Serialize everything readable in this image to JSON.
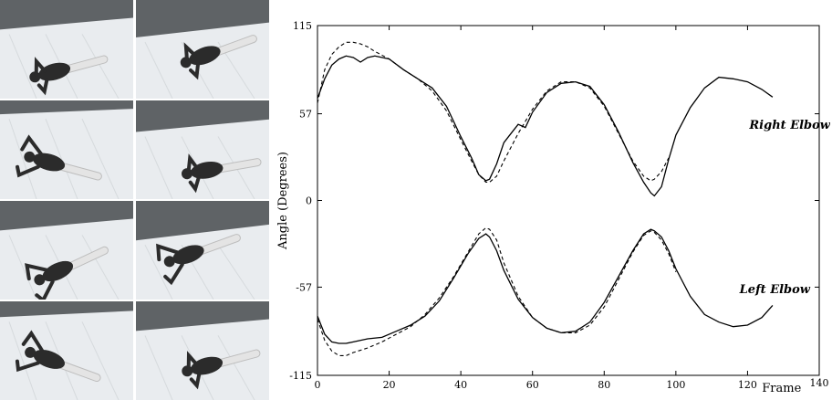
{
  "photos": {
    "count": 8,
    "background_floor": "#e9ecef",
    "background_wall": "#5f6366",
    "figure_color": "#2b2b2b"
  },
  "chart_data": {
    "type": "line",
    "xlabel": "Frame",
    "ylabel": "Angle (Degrees)",
    "xlim": [
      0,
      140
    ],
    "ylim": [
      -115,
      115
    ],
    "x_ticks": [
      0,
      20,
      40,
      60,
      80,
      100,
      120,
      140
    ],
    "y_ticks": [
      -115,
      -57,
      0,
      57,
      115
    ],
    "grid": false,
    "annotations": [
      "Right Elbow",
      "Left Elbow"
    ],
    "series": [
      {
        "group": "Right Elbow",
        "style": "solid",
        "x": [
          0,
          2,
          4,
          6,
          8,
          10,
          12,
          14,
          16,
          20,
          24,
          28,
          32,
          36,
          40,
          43,
          45,
          47,
          48,
          50,
          52,
          54,
          56,
          58,
          60,
          64,
          68,
          72,
          76,
          80,
          84,
          88,
          91,
          93,
          94,
          96,
          98,
          100,
          104,
          108,
          112,
          116,
          120,
          124,
          127
        ],
        "y": [
          67,
          80,
          89,
          93,
          95,
          94,
          91,
          94,
          95,
          93,
          86,
          80,
          74,
          62,
          42,
          28,
          17,
          13,
          14,
          24,
          38,
          44,
          50,
          48,
          58,
          71,
          77,
          78,
          75,
          63,
          45,
          25,
          12,
          5,
          3,
          9,
          27,
          43,
          61,
          74,
          81,
          80,
          78,
          73,
          68
        ]
      },
      {
        "group": "Right Elbow",
        "style": "dashed",
        "x": [
          0,
          2,
          4,
          6,
          8,
          10,
          12,
          14,
          16,
          20,
          24,
          28,
          32,
          36,
          40,
          43,
          45,
          47,
          48,
          50,
          52,
          56,
          60,
          64,
          68,
          72,
          76,
          80,
          84,
          88,
          91,
          93,
          94,
          96,
          98
        ],
        "y": [
          64,
          86,
          96,
          101,
          104,
          104,
          103,
          101,
          98,
          93,
          86,
          80,
          72,
          59,
          40,
          26,
          17,
          12,
          12,
          16,
          26,
          44,
          60,
          72,
          78,
          78,
          74,
          62,
          44,
          26,
          16,
          13,
          14,
          19,
          28
        ]
      },
      {
        "group": "Left Elbow",
        "style": "solid",
        "x": [
          0,
          2,
          4,
          6,
          8,
          10,
          14,
          18,
          22,
          26,
          30,
          34,
          38,
          42,
          45,
          47,
          48,
          50,
          52,
          56,
          60,
          64,
          68,
          72,
          76,
          80,
          84,
          88,
          91,
          93,
          94,
          96,
          98,
          100,
          104,
          108,
          112,
          116,
          120,
          124,
          127
        ],
        "y": [
          -76,
          -88,
          -93,
          -94,
          -94,
          -93,
          -91,
          -90,
          -86,
          -82,
          -76,
          -66,
          -51,
          -35,
          -25,
          -22,
          -24,
          -33,
          -46,
          -65,
          -77,
          -84,
          -87,
          -86,
          -80,
          -67,
          -50,
          -33,
          -22,
          -19,
          -20,
          -24,
          -33,
          -45,
          -63,
          -75,
          -80,
          -83,
          -82,
          -77,
          -69
        ]
      },
      {
        "group": "Left Elbow",
        "style": "dashed",
        "x": [
          0,
          2,
          4,
          6,
          8,
          10,
          14,
          18,
          22,
          26,
          30,
          34,
          38,
          42,
          45,
          47,
          48,
          50,
          52,
          56,
          60,
          64,
          68,
          72,
          76,
          80,
          84,
          88,
          91,
          93,
          94,
          96,
          98,
          100
        ],
        "y": [
          -78,
          -92,
          -99,
          -102,
          -102,
          -100,
          -97,
          -93,
          -88,
          -83,
          -75,
          -64,
          -50,
          -34,
          -22,
          -18,
          -19,
          -26,
          -41,
          -63,
          -77,
          -84,
          -87,
          -87,
          -82,
          -70,
          -52,
          -34,
          -23,
          -20,
          -21,
          -26,
          -35,
          -47
        ]
      }
    ]
  }
}
